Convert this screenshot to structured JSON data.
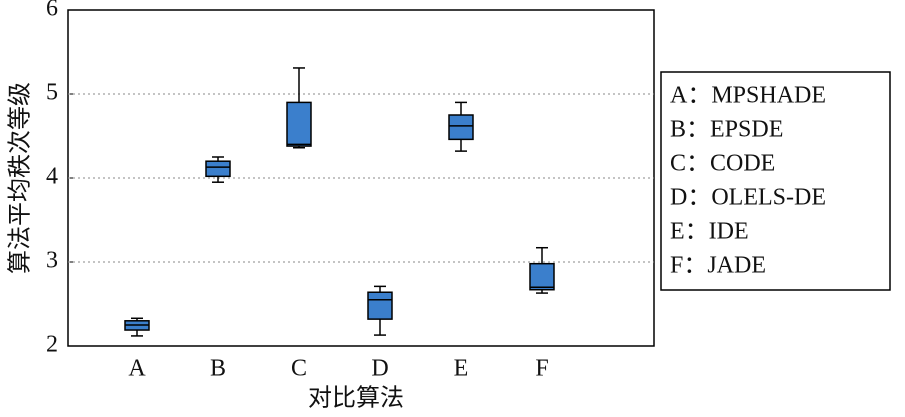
{
  "chart_data": {
    "type": "box",
    "ylabel": "算法平均秩次等级",
    "xlabel": "对比算法",
    "categories": [
      "A",
      "B",
      "C",
      "D",
      "E",
      "F"
    ],
    "boxes": [
      {
        "min": 2.12,
        "q1": 2.19,
        "median": 2.25,
        "q3": 2.3,
        "max": 2.33
      },
      {
        "min": 3.95,
        "q1": 4.02,
        "median": 4.13,
        "q3": 4.2,
        "max": 4.25
      },
      {
        "min": 4.36,
        "q1": 4.38,
        "median": 4.4,
        "q3": 4.9,
        "max": 5.31
      },
      {
        "min": 2.13,
        "q1": 2.32,
        "median": 2.55,
        "q3": 2.64,
        "max": 2.71
      },
      {
        "min": 4.32,
        "q1": 4.46,
        "median": 4.62,
        "q3": 4.75,
        "max": 4.9
      },
      {
        "min": 2.63,
        "q1": 2.67,
        "median": 2.7,
        "q3": 2.98,
        "max": 3.17
      }
    ],
    "color": "#3b7fcc",
    "ylim": [
      2,
      6
    ],
    "yticks": [
      2,
      3,
      4,
      5,
      6
    ],
    "grid": true,
    "legend": [
      "A：MPSHADE",
      "B：EPSDE",
      "C：CODE",
      "D：OLELS-DE",
      "E：IDE",
      "F：JADE"
    ]
  }
}
